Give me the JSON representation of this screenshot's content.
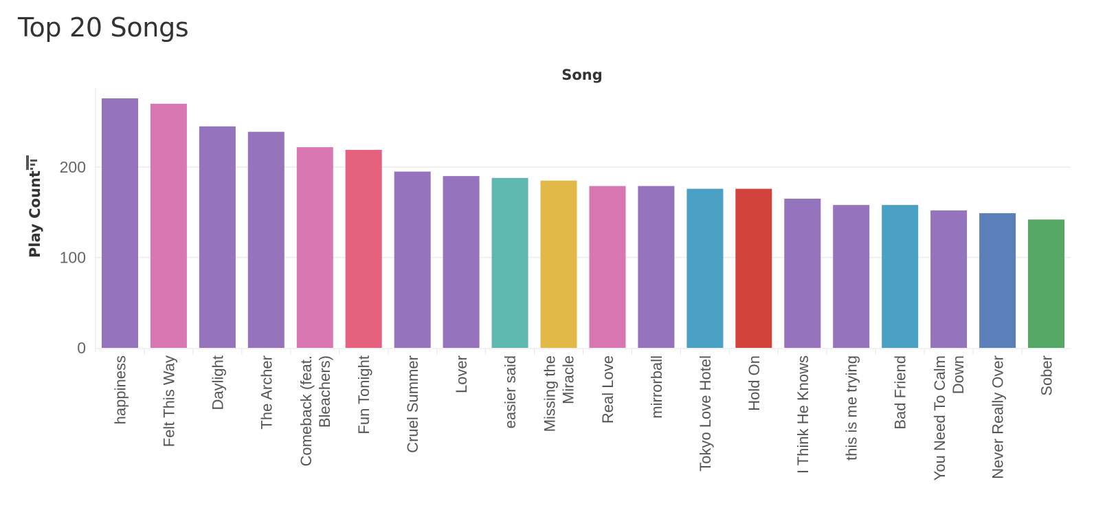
{
  "title": "Top 20 Songs",
  "chart_data": {
    "type": "bar",
    "column_header": "Song",
    "ylabel": "Play Count",
    "ylim": [
      0,
      290
    ],
    "yticks": [
      0,
      100,
      200
    ],
    "grid": true,
    "sort_icon": "sort-descending-icon",
    "categories": [
      "happiness",
      "Felt This Way",
      "Daylight",
      "The Archer",
      "Comeback (feat. Bleachers)",
      "Fun Tonight",
      "Cruel Summer",
      "Lover",
      "easier said",
      "Missing the Miracle",
      "Real Love",
      "mirrorball",
      "Tokyo Love Hotel",
      "Hold On",
      "I Think He Knows",
      "this is me trying",
      "Bad Friend",
      "You Need To Calm Down",
      "Never Really Over",
      "Sober"
    ],
    "tick_lines": [
      [
        "happiness"
      ],
      [
        "Felt This Way"
      ],
      [
        "Daylight"
      ],
      [
        "The Archer"
      ],
      [
        "Comeback (feat.",
        "Bleachers)"
      ],
      [
        "Fun Tonight"
      ],
      [
        "Cruel Summer"
      ],
      [
        "Lover"
      ],
      [
        "easier said"
      ],
      [
        "Missing the",
        "Miracle"
      ],
      [
        "Real Love"
      ],
      [
        "mirrorball"
      ],
      [
        "Tokyo Love Hotel"
      ],
      [
        "Hold On"
      ],
      [
        "I Think He Knows"
      ],
      [
        "this is me trying"
      ],
      [
        "Bad Friend"
      ],
      [
        "You Need To Calm",
        "Down"
      ],
      [
        "Never Really Over"
      ],
      [
        "Sober"
      ]
    ],
    "values": [
      276,
      270,
      245,
      239,
      222,
      219,
      195,
      190,
      188,
      185,
      179,
      179,
      176,
      176,
      165,
      158,
      158,
      152,
      149,
      142
    ],
    "colors": [
      "#9673bd",
      "#d877b2",
      "#9673bd",
      "#9673bd",
      "#d877b2",
      "#e6617e",
      "#9673bd",
      "#9673bd",
      "#5fb8b0",
      "#e2b846",
      "#d877b2",
      "#9673bd",
      "#4aa0c3",
      "#d2433c",
      "#9673bd",
      "#9673bd",
      "#4aa0c3",
      "#9673bd",
      "#5b7fb8",
      "#55a765"
    ]
  }
}
